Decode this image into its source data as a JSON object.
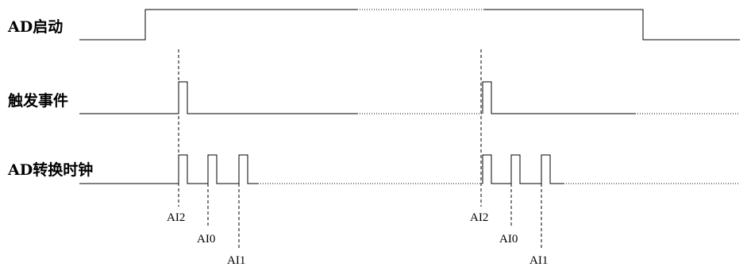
{
  "signals": {
    "ad_start": "AD启动",
    "trigger_event": "触发事件",
    "ad_conv_clock": "AD转换时钟"
  },
  "channels": {
    "first": [
      "AI2",
      "AI0",
      "AI1"
    ],
    "second": [
      "AI2",
      "AI0",
      "AI1"
    ]
  }
}
